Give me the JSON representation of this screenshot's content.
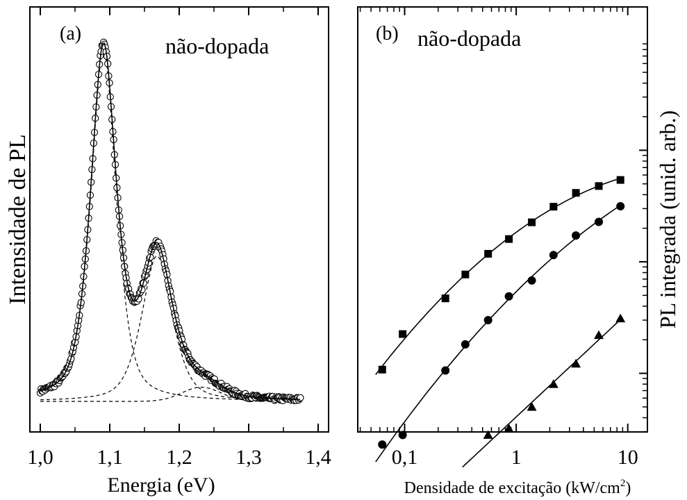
{
  "chart_data": [
    {
      "panel_label": "(a)",
      "annotation": "não-dopada",
      "type": "scatter",
      "xlabel": "Energia (eV)",
      "ylabel": "Intensidade de PL",
      "xlim": [
        1.0,
        1.4
      ],
      "ylim": [
        0,
        1.1
      ],
      "x_ticks": [
        "1,0",
        "1,1",
        "1,2",
        "1,3",
        "1,4"
      ],
      "x_tick_values": [
        1.0,
        1.1,
        1.2,
        1.3,
        1.4
      ],
      "y_ticks_labeled": false,
      "baseline": 0.0,
      "components": [
        {
          "center": 1.091,
          "amplitude": 0.99,
          "width": 0.02,
          "shape": "lorentzian-gaussian"
        },
        {
          "center": 1.168,
          "amplitude": 0.41,
          "width": 0.024,
          "shape": "lorentzian-gaussian"
        },
        {
          "center": 1.232,
          "amplitude": 0.04,
          "width": 0.028,
          "shape": "gaussian"
        }
      ],
      "series": [
        {
          "marker": "open-circle",
          "style": "data"
        },
        {
          "style": "solid-fit"
        },
        {
          "style": "dashed-components"
        }
      ]
    },
    {
      "panel_label": "(b)",
      "annotation": "não-dopada",
      "type": "scatter",
      "xlabel": "Densidade de excitação (kW/cm",
      "xlabel_sup": "2",
      "xlabel_close": ")",
      "ylabel": "PL integrada (unid. arb.)",
      "x_scale": "log",
      "y_scale": "log",
      "xlim": [
        0.038,
        15
      ],
      "ylim": [
        1,
        10000
      ],
      "x_ticks": [
        "0,1",
        "1",
        "10"
      ],
      "x_tick_values": [
        0.1,
        1,
        10
      ],
      "y_ticks_labeled": false,
      "series": [
        {
          "marker": "filled-square",
          "x": [
            0.063,
            0.096,
            0.232,
            0.35,
            0.56,
            0.86,
            1.38,
            2.16,
            3.43,
            5.5,
            8.6
          ],
          "y": [
            108,
            225,
            470,
            770,
            1180,
            1600,
            2260,
            3120,
            4150,
            4780,
            5420
          ],
          "fit_x": [
            0.055,
            9.0
          ],
          "fit": "sublinear"
        },
        {
          "marker": "filled-circle",
          "x": [
            0.063,
            0.096,
            0.232,
            0.35,
            0.56,
            0.86,
            1.38,
            2.16,
            3.43,
            5.5,
            8.6
          ],
          "y": [
            23,
            28,
            106,
            182,
            300,
            490,
            680,
            1150,
            1720,
            2280,
            3150
          ],
          "fit_x": [
            0.055,
            9.0
          ],
          "fit": "sublinear"
        },
        {
          "marker": "filled-triangle",
          "x": [
            0.56,
            0.86,
            1.38,
            2.16,
            3.43,
            5.5,
            8.6
          ],
          "y": [
            28,
            32,
            50,
            80,
            122,
            220,
            310
          ],
          "fit_x": [
            0.33,
            9.0
          ],
          "fit": "linear"
        }
      ]
    }
  ]
}
